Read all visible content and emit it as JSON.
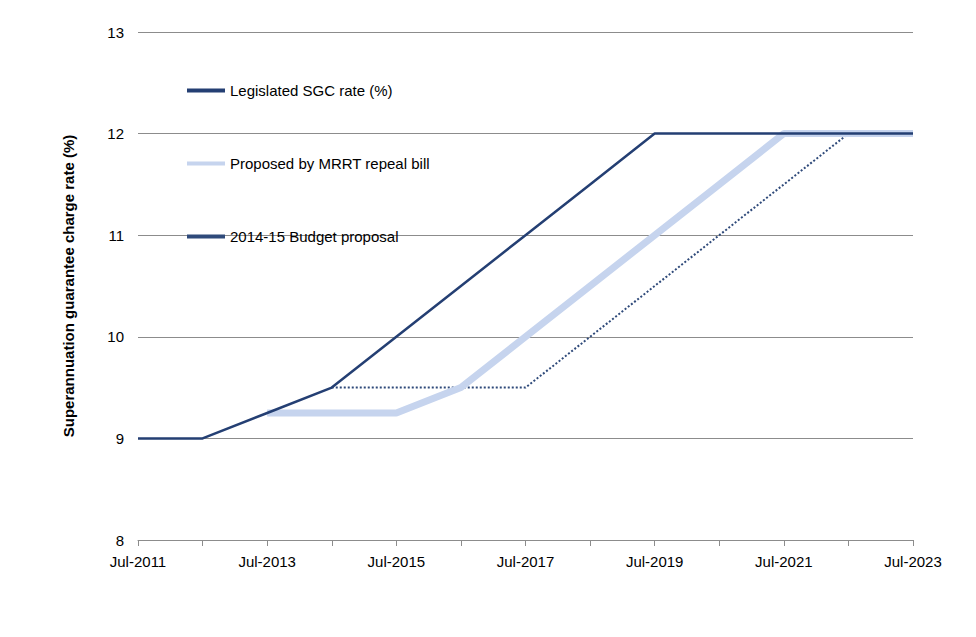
{
  "chart_data": {
    "type": "line",
    "y_label": "Superannuation guarantee charge rate (%)",
    "categories": [
      "Jul-2011",
      null,
      "Jul-2013",
      null,
      "Jul-2015",
      null,
      "Jul-2017",
      null,
      "Jul-2019",
      null,
      "Jul-2021",
      null,
      "Jul-2023"
    ],
    "series": [
      {
        "name": "Legislated SGC rate (%)",
        "color": "#243F73",
        "line_style": "solid",
        "values": [
          9,
          9,
          9.25,
          9.5,
          10,
          10.5,
          11,
          11.5,
          12,
          12,
          12,
          12,
          12
        ]
      },
      {
        "name": "Proposed by MRRT repeal bill",
        "color": "#C6D4EE",
        "line_style": "solid",
        "values": [
          null,
          null,
          9.25,
          9.25,
          9.25,
          9.5,
          10,
          10.5,
          11,
          11.5,
          12,
          12,
          12
        ]
      },
      {
        "name": "2014-15 Budget proposal",
        "color": "#2F4A7A",
        "line_style": "dotted",
        "values": [
          null,
          null,
          null,
          9.5,
          9.5,
          9.5,
          9.5,
          10,
          10.5,
          11,
          11.5,
          12,
          12
        ]
      }
    ],
    "ylim": [
      8,
      13
    ],
    "yticks": [
      8,
      9,
      10,
      11,
      12,
      13
    ],
    "grid": true,
    "legend": "upper left"
  }
}
